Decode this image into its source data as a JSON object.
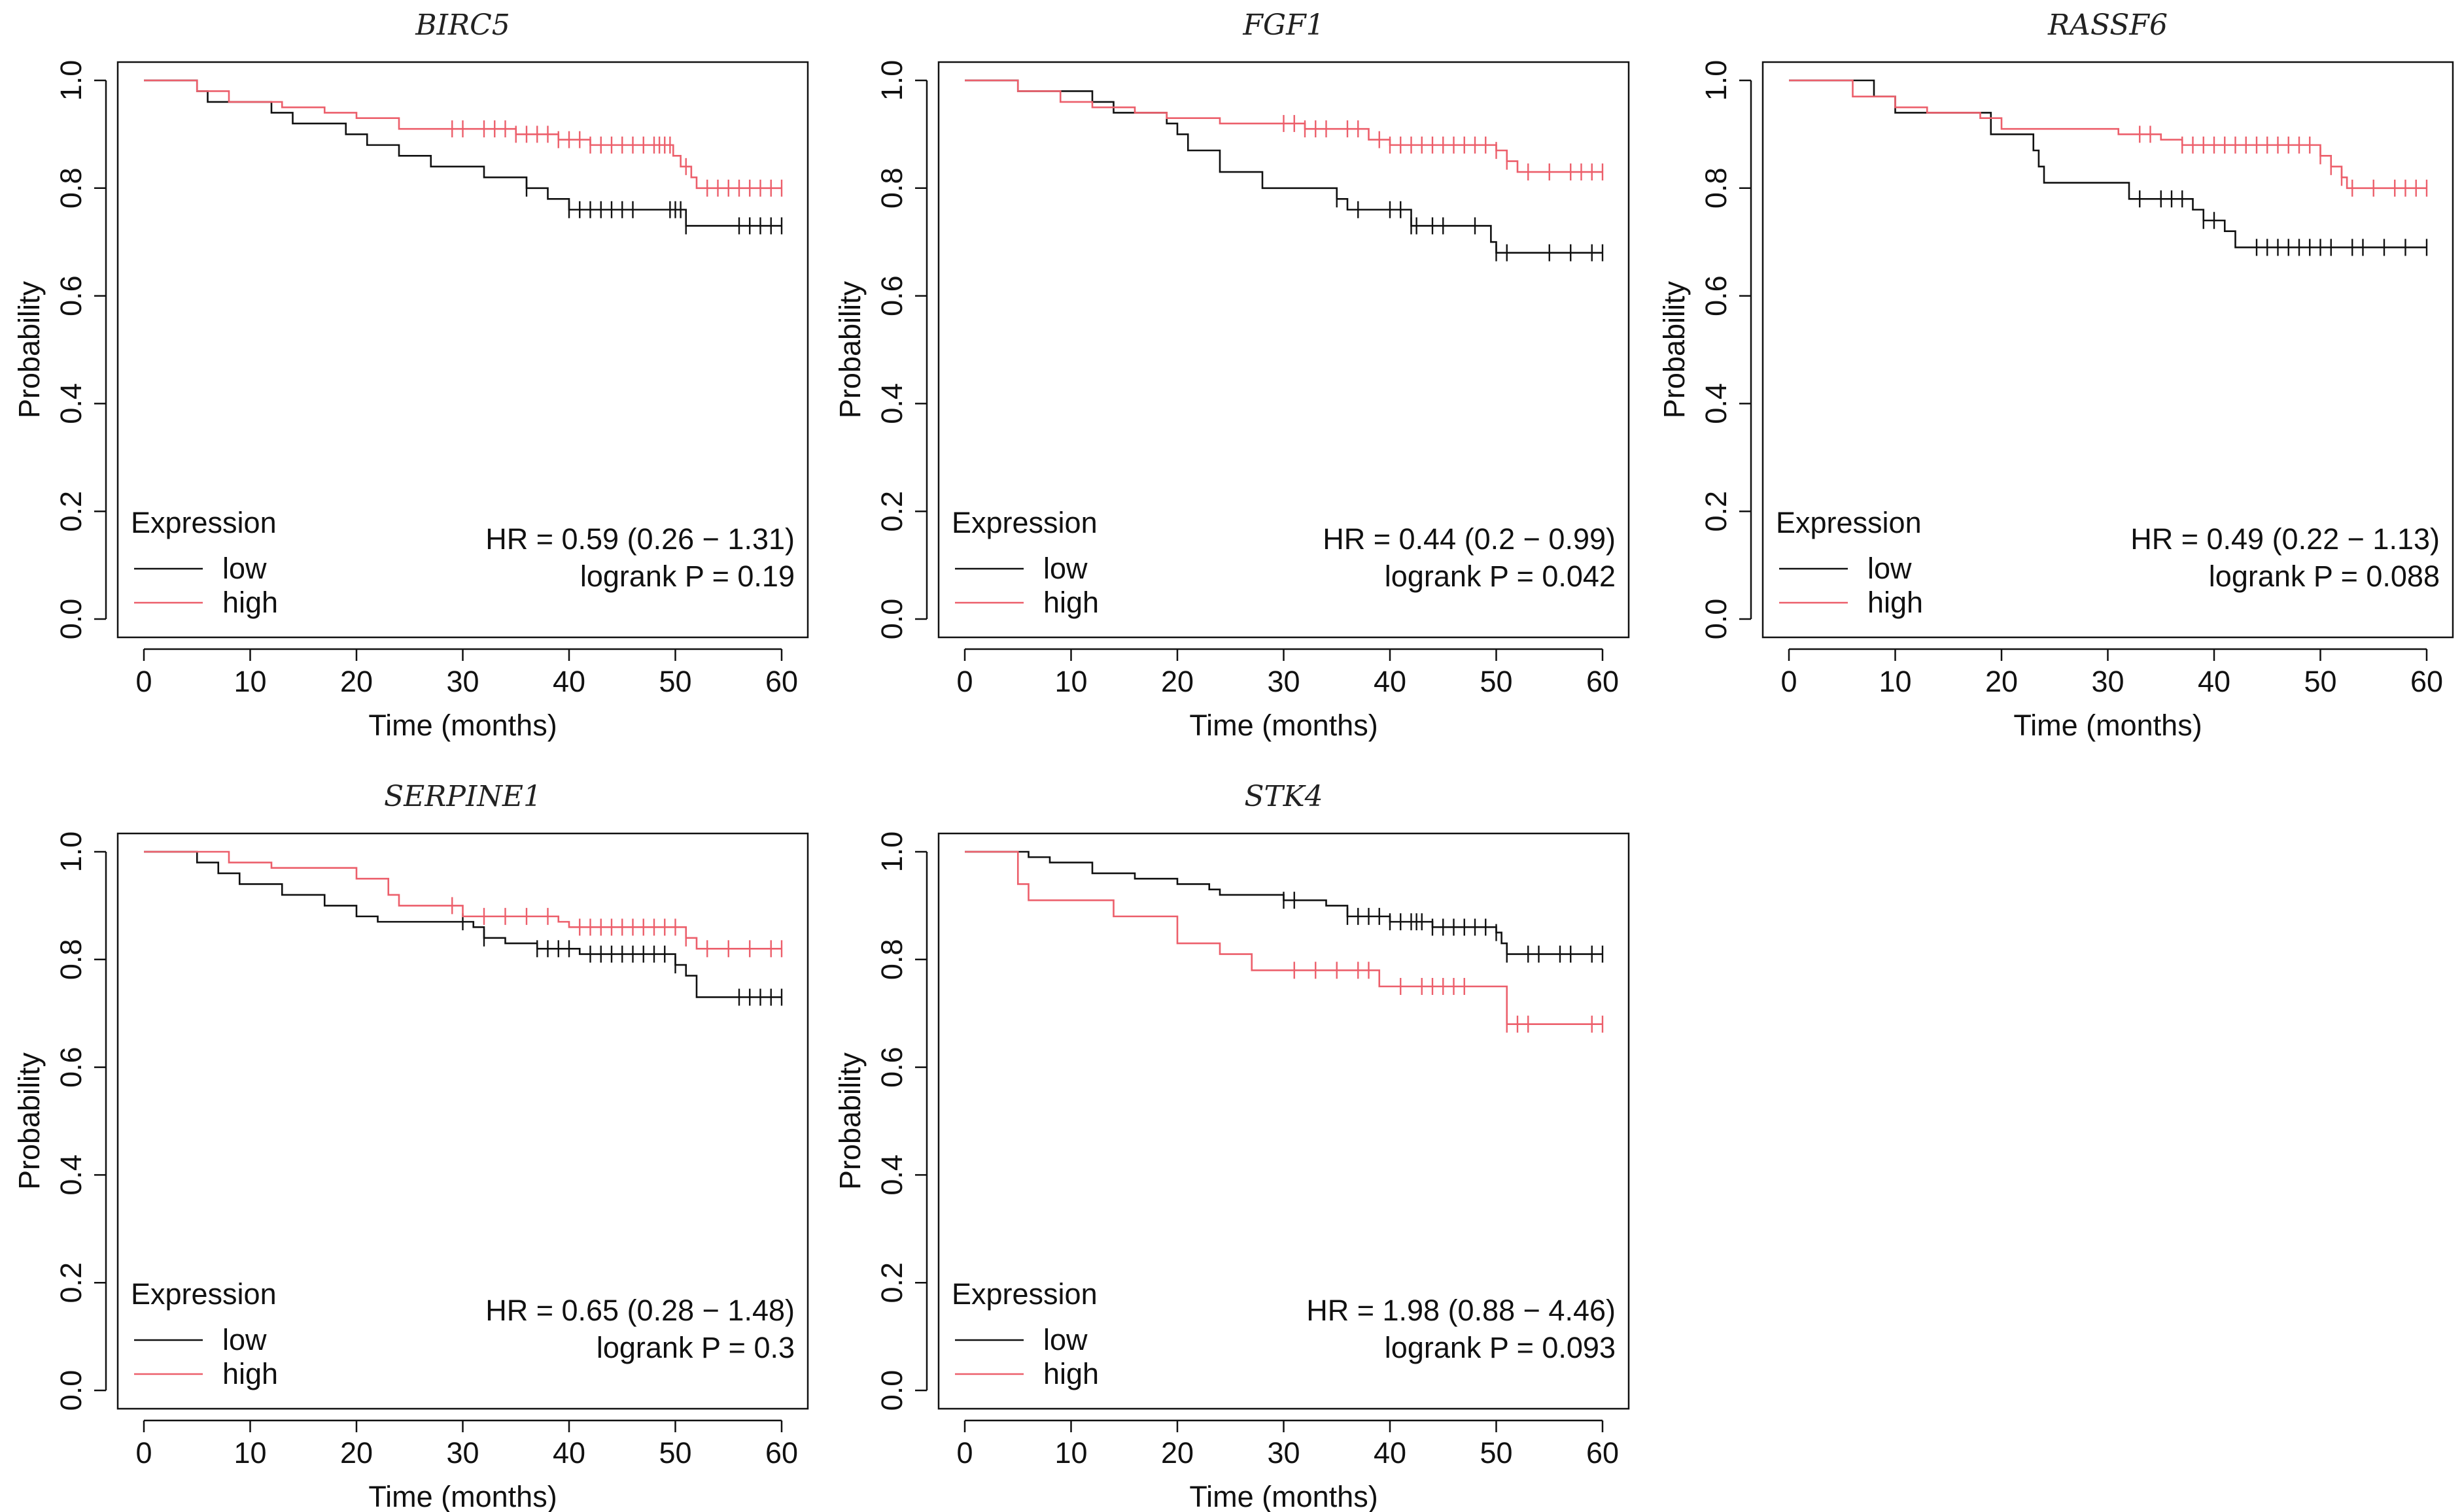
{
  "legend": {
    "title": "Expression",
    "low_label": "low",
    "high_label": "high"
  },
  "colors": {
    "low": "#111111",
    "high": "#ec5f6b",
    "axis": "#111111"
  },
  "chart_data": [
    {
      "type": "line",
      "title": "BIRC5",
      "xlabel": "Time (months)",
      "ylabel": "Probability",
      "xlim": [
        0,
        60
      ],
      "ylim": [
        0,
        1
      ],
      "xticks": [
        "0",
        "10",
        "20",
        "30",
        "40",
        "50",
        "60"
      ],
      "yticks": [
        "0.0",
        "0.2",
        "0.4",
        "0.6",
        "0.8",
        "1.0"
      ],
      "hr_text": "HR = 0.59 (0.26 − 1.31)",
      "p_text": "logrank P = 0.19",
      "series": [
        {
          "name": "low",
          "steps": [
            [
              0,
              1.0
            ],
            [
              5,
              0.98
            ],
            [
              6,
              0.96
            ],
            [
              12,
              0.94
            ],
            [
              14,
              0.92
            ],
            [
              19,
              0.9
            ],
            [
              21,
              0.88
            ],
            [
              24,
              0.86
            ],
            [
              27,
              0.84
            ],
            [
              32,
              0.82
            ],
            [
              36,
              0.8
            ],
            [
              38,
              0.78
            ],
            [
              40,
              0.76
            ],
            [
              51,
              0.73
            ],
            [
              60,
              0.73
            ]
          ],
          "censors": [
            36,
            40,
            41,
            42,
            43,
            44,
            45,
            46,
            49.5,
            50,
            50.5,
            51,
            56,
            57,
            58,
            59,
            60
          ]
        },
        {
          "name": "high",
          "steps": [
            [
              0,
              1.0
            ],
            [
              5,
              0.98
            ],
            [
              8,
              0.96
            ],
            [
              13,
              0.95
            ],
            [
              17,
              0.94
            ],
            [
              20,
              0.93
            ],
            [
              24,
              0.91
            ],
            [
              35,
              0.9
            ],
            [
              39,
              0.89
            ],
            [
              42,
              0.88
            ],
            [
              49.8,
              0.86
            ],
            [
              50.5,
              0.84
            ],
            [
              51.5,
              0.82
            ],
            [
              52,
              0.8
            ],
            [
              60,
              0.8
            ]
          ],
          "censors": [
            29,
            30,
            32,
            33,
            34,
            35,
            36,
            37,
            38,
            39,
            40,
            41,
            42,
            43,
            44,
            45,
            46,
            47,
            48,
            48.5,
            49,
            49.5,
            51,
            53,
            54,
            55,
            56,
            57,
            58,
            59,
            60
          ]
        }
      ]
    },
    {
      "type": "line",
      "title": "FGF1",
      "xlabel": "Time (months)",
      "ylabel": "Probability",
      "xlim": [
        0,
        60
      ],
      "ylim": [
        0,
        1
      ],
      "xticks": [
        "0",
        "10",
        "20",
        "30",
        "40",
        "50",
        "60"
      ],
      "yticks": [
        "0.0",
        "0.2",
        "0.4",
        "0.6",
        "0.8",
        "1.0"
      ],
      "hr_text": "HR = 0.44 (0.2 − 0.99)",
      "p_text": "logrank P = 0.042",
      "series": [
        {
          "name": "low",
          "steps": [
            [
              0,
              1.0
            ],
            [
              5,
              0.98
            ],
            [
              12,
              0.96
            ],
            [
              14,
              0.94
            ],
            [
              19,
              0.92
            ],
            [
              20,
              0.9
            ],
            [
              21,
              0.87
            ],
            [
              24,
              0.83
            ],
            [
              28,
              0.8
            ],
            [
              35,
              0.78
            ],
            [
              36,
              0.76
            ],
            [
              42,
              0.73
            ],
            [
              49.5,
              0.7
            ],
            [
              50,
              0.68
            ],
            [
              60,
              0.68
            ]
          ],
          "censors": [
            35,
            37,
            40,
            41,
            42,
            42.5,
            44,
            45,
            48,
            50,
            51,
            55,
            57,
            59,
            60
          ]
        },
        {
          "name": "high",
          "steps": [
            [
              0,
              1.0
            ],
            [
              5,
              0.98
            ],
            [
              9,
              0.96
            ],
            [
              12,
              0.95
            ],
            [
              16,
              0.94
            ],
            [
              19,
              0.93
            ],
            [
              24,
              0.92
            ],
            [
              32,
              0.91
            ],
            [
              38,
              0.89
            ],
            [
              40,
              0.88
            ],
            [
              50,
              0.87
            ],
            [
              51,
              0.85
            ],
            [
              52,
              0.83
            ],
            [
              60,
              0.83
            ]
          ],
          "censors": [
            30,
            31,
            32,
            33,
            34,
            36,
            37,
            39,
            40,
            41,
            42,
            43,
            44,
            45,
            46,
            47,
            48,
            49,
            50,
            51,
            53,
            55,
            57,
            58,
            59,
            60
          ]
        }
      ]
    },
    {
      "type": "line",
      "title": "RASSF6",
      "xlabel": "Time (months)",
      "ylabel": "Probability",
      "xlim": [
        0,
        60
      ],
      "ylim": [
        0,
        1
      ],
      "xticks": [
        "0",
        "10",
        "20",
        "30",
        "40",
        "50",
        "60"
      ],
      "yticks": [
        "0.0",
        "0.2",
        "0.4",
        "0.6",
        "0.8",
        "1.0"
      ],
      "hr_text": "HR = 0.49 (0.22 − 1.13)",
      "p_text": "logrank P = 0.088",
      "series": [
        {
          "name": "low",
          "steps": [
            [
              0,
              1.0
            ],
            [
              8,
              0.97
            ],
            [
              10,
              0.94
            ],
            [
              19,
              0.9
            ],
            [
              23,
              0.87
            ],
            [
              23.5,
              0.84
            ],
            [
              24,
              0.81
            ],
            [
              32,
              0.78
            ],
            [
              38,
              0.76
            ],
            [
              39,
              0.74
            ],
            [
              41,
              0.72
            ],
            [
              42,
              0.69
            ],
            [
              60,
              0.69
            ]
          ],
          "censors": [
            33,
            35,
            36,
            37,
            39,
            40,
            44,
            45,
            46,
            47,
            48,
            49,
            50,
            51,
            53,
            54,
            56,
            58,
            60
          ]
        },
        {
          "name": "high",
          "steps": [
            [
              0,
              1.0
            ],
            [
              6,
              0.97
            ],
            [
              10,
              0.95
            ],
            [
              13,
              0.94
            ],
            [
              18,
              0.93
            ],
            [
              20,
              0.91
            ],
            [
              31,
              0.9
            ],
            [
              35,
              0.89
            ],
            [
              37,
              0.88
            ],
            [
              50,
              0.86
            ],
            [
              51,
              0.84
            ],
            [
              52,
              0.82
            ],
            [
              52.5,
              0.8
            ],
            [
              60,
              0.8
            ]
          ],
          "censors": [
            33,
            34,
            37,
            38,
            39,
            40,
            41,
            42,
            43,
            44,
            45,
            46,
            47,
            48,
            49,
            50,
            51,
            52,
            53,
            55,
            57,
            58,
            59,
            60
          ]
        }
      ]
    },
    {
      "type": "line",
      "title": "SERPINE1",
      "xlabel": "Time (months)",
      "ylabel": "Probability",
      "xlim": [
        0,
        60
      ],
      "ylim": [
        0,
        1
      ],
      "xticks": [
        "0",
        "10",
        "20",
        "30",
        "40",
        "50",
        "60"
      ],
      "yticks": [
        "0.0",
        "0.2",
        "0.4",
        "0.6",
        "0.8",
        "1.0"
      ],
      "hr_text": "HR = 0.65 (0.28 − 1.48)",
      "p_text": "logrank P = 0.3",
      "series": [
        {
          "name": "low",
          "steps": [
            [
              0,
              1.0
            ],
            [
              5,
              0.98
            ],
            [
              7,
              0.96
            ],
            [
              9,
              0.94
            ],
            [
              13,
              0.92
            ],
            [
              17,
              0.9
            ],
            [
              20,
              0.88
            ],
            [
              22,
              0.87
            ],
            [
              31,
              0.86
            ],
            [
              32,
              0.84
            ],
            [
              34,
              0.83
            ],
            [
              37,
              0.82
            ],
            [
              41,
              0.81
            ],
            [
              50,
              0.79
            ],
            [
              51,
              0.77
            ],
            [
              52,
              0.73
            ],
            [
              60,
              0.73
            ]
          ],
          "censors": [
            30,
            32,
            37,
            38,
            39,
            40,
            42,
            43,
            44,
            45,
            46,
            47,
            48,
            49,
            50,
            56,
            57,
            58,
            59,
            60
          ]
        },
        {
          "name": "high",
          "steps": [
            [
              0,
              1.0
            ],
            [
              8,
              0.98
            ],
            [
              12,
              0.97
            ],
            [
              20,
              0.95
            ],
            [
              23,
              0.92
            ],
            [
              24,
              0.9
            ],
            [
              30,
              0.88
            ],
            [
              39,
              0.87
            ],
            [
              40,
              0.86
            ],
            [
              51,
              0.84
            ],
            [
              52,
              0.82
            ],
            [
              60,
              0.82
            ]
          ],
          "censors": [
            29,
            32,
            34,
            36,
            38,
            41,
            42,
            43,
            44,
            45,
            46,
            47,
            48,
            49,
            50,
            51,
            53,
            55,
            57,
            59,
            60
          ]
        }
      ]
    },
    {
      "type": "line",
      "title": "STK4",
      "xlabel": "Time (months)",
      "ylabel": "Probability",
      "xlim": [
        0,
        60
      ],
      "ylim": [
        0,
        1
      ],
      "xticks": [
        "0",
        "10",
        "20",
        "30",
        "40",
        "50",
        "60"
      ],
      "yticks": [
        "0.0",
        "0.2",
        "0.4",
        "0.6",
        "0.8",
        "1.0"
      ],
      "hr_text": "HR = 1.98 (0.88 − 4.46)",
      "p_text": "logrank P = 0.093",
      "series": [
        {
          "name": "low",
          "steps": [
            [
              0,
              1.0
            ],
            [
              6,
              0.99
            ],
            [
              8,
              0.98
            ],
            [
              12,
              0.96
            ],
            [
              16,
              0.95
            ],
            [
              20,
              0.94
            ],
            [
              23,
              0.93
            ],
            [
              24,
              0.92
            ],
            [
              30,
              0.91
            ],
            [
              34,
              0.9
            ],
            [
              36,
              0.88
            ],
            [
              40,
              0.87
            ],
            [
              44,
              0.86
            ],
            [
              50,
              0.85
            ],
            [
              50.5,
              0.83
            ],
            [
              51,
              0.81
            ],
            [
              60,
              0.81
            ]
          ],
          "censors": [
            30,
            31,
            36,
            37,
            38,
            39,
            40,
            41,
            42,
            42.5,
            43,
            44,
            45,
            46,
            47,
            48,
            49,
            50,
            51,
            53,
            54,
            56,
            57,
            59,
            60
          ]
        },
        {
          "name": "high",
          "steps": [
            [
              0,
              1.0
            ],
            [
              5,
              0.94
            ],
            [
              6,
              0.91
            ],
            [
              14,
              0.88
            ],
            [
              20,
              0.83
            ],
            [
              24,
              0.81
            ],
            [
              27,
              0.78
            ],
            [
              39,
              0.75
            ],
            [
              51,
              0.68
            ],
            [
              60,
              0.68
            ]
          ],
          "censors": [
            31,
            33,
            35,
            37,
            38,
            41,
            43,
            44,
            45,
            46,
            47,
            51,
            52,
            53,
            59,
            60
          ]
        }
      ]
    }
  ]
}
